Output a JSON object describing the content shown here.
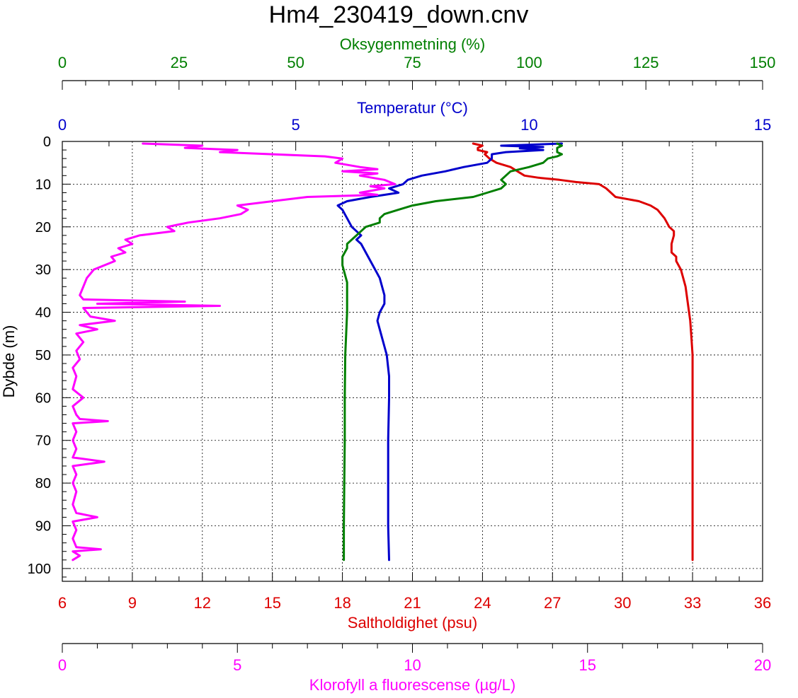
{
  "title": "Hm4_230419_down.cnv",
  "colors": {
    "oxygen": "#007f00",
    "temperature": "#0000cc",
    "salinity": "#dd0000",
    "chlorophyll": "#ff00ff",
    "axis": "#000000",
    "grid": "#000000"
  },
  "chart_data": {
    "type": "line",
    "title": "Hm4_230419_down.cnv",
    "grid": true,
    "depth_axis": {
      "label": "Dybde (m)",
      "ticks": [
        "0",
        "10",
        "20",
        "30",
        "40",
        "50",
        "60",
        "70",
        "80",
        "90",
        "100"
      ],
      "range": [
        0,
        103
      ],
      "inverted": true
    },
    "axes": [
      {
        "key": "oxygen",
        "label": "Oksygenmetning (%)",
        "range": [
          0,
          150
        ],
        "ticks": [
          "0",
          "25",
          "50",
          "75",
          "100",
          "125",
          "150"
        ]
      },
      {
        "key": "temperature",
        "label": "Temperatur (°C)",
        "range": [
          0,
          15
        ],
        "ticks": [
          "0",
          "5",
          "10",
          "15"
        ]
      },
      {
        "key": "salinity",
        "label": "Saltholdighet (psu)",
        "range": [
          6,
          36
        ],
        "ticks": [
          "6",
          "9",
          "12",
          "15",
          "18",
          "21",
          "24",
          "27",
          "30",
          "33",
          "36"
        ]
      },
      {
        "key": "chlorophyll",
        "label": "Klorofyll a fluorescense (µg/L)",
        "range": [
          0,
          20
        ],
        "ticks": [
          "0",
          "5",
          "10",
          "15",
          "20"
        ]
      }
    ],
    "series": [
      {
        "key": "salinity",
        "axis": "salinity",
        "points": [
          [
            23.6,
            0.5
          ],
          [
            24.0,
            1
          ],
          [
            23.8,
            1.5
          ],
          [
            23.8,
            2
          ],
          [
            24.2,
            2.5
          ],
          [
            24.1,
            3
          ],
          [
            24.3,
            4
          ],
          [
            24.6,
            5
          ],
          [
            25.2,
            6
          ],
          [
            25.5,
            7
          ],
          [
            25.8,
            8
          ],
          [
            26.4,
            8.5
          ],
          [
            27.3,
            9
          ],
          [
            28.0,
            9.5
          ],
          [
            29.0,
            10
          ],
          [
            29.3,
            11
          ],
          [
            29.7,
            13
          ],
          [
            30.7,
            14
          ],
          [
            31.2,
            15
          ],
          [
            31.5,
            16
          ],
          [
            31.8,
            18
          ],
          [
            31.9,
            19
          ],
          [
            32.0,
            20
          ],
          [
            32.2,
            21
          ],
          [
            32.2,
            22
          ],
          [
            32.1,
            24
          ],
          [
            32.1,
            26
          ],
          [
            32.3,
            27
          ],
          [
            32.3,
            28
          ],
          [
            32.5,
            30
          ],
          [
            32.6,
            32
          ],
          [
            32.7,
            34
          ],
          [
            32.8,
            38
          ],
          [
            32.9,
            42
          ],
          [
            32.95,
            46
          ],
          [
            33.0,
            50
          ],
          [
            33.0,
            58
          ],
          [
            33.0,
            70
          ],
          [
            33.0,
            80
          ],
          [
            33.0,
            90
          ],
          [
            33.0,
            98
          ]
        ]
      },
      {
        "key": "temperature",
        "axis": "temperature",
        "points": [
          [
            10.7,
            0.5
          ],
          [
            9.4,
            1
          ],
          [
            10.3,
            1.3
          ],
          [
            9.8,
            1.6
          ],
          [
            10.3,
            2
          ],
          [
            9.5,
            2.5
          ],
          [
            9.2,
            3
          ],
          [
            9.2,
            4
          ],
          [
            9.1,
            5
          ],
          [
            8.6,
            6
          ],
          [
            8.2,
            7
          ],
          [
            7.7,
            8
          ],
          [
            7.4,
            9
          ],
          [
            7.3,
            10
          ],
          [
            7.0,
            11
          ],
          [
            7.2,
            12
          ],
          [
            6.6,
            13
          ],
          [
            6.1,
            14
          ],
          [
            5.9,
            15
          ],
          [
            6.0,
            16
          ],
          [
            6.1,
            18
          ],
          [
            6.2,
            20
          ],
          [
            6.4,
            22
          ],
          [
            6.3,
            23
          ],
          [
            6.4,
            24
          ],
          [
            6.5,
            26
          ],
          [
            6.6,
            28
          ],
          [
            6.7,
            30
          ],
          [
            6.8,
            32
          ],
          [
            6.85,
            34
          ],
          [
            6.9,
            36
          ],
          [
            6.9,
            38
          ],
          [
            6.8,
            40
          ],
          [
            6.75,
            42
          ],
          [
            6.8,
            44
          ],
          [
            6.85,
            46
          ],
          [
            6.9,
            48
          ],
          [
            6.95,
            50
          ],
          [
            7.0,
            55
          ],
          [
            7.0,
            60
          ],
          [
            6.98,
            70
          ],
          [
            6.98,
            80
          ],
          [
            6.98,
            90
          ],
          [
            7.0,
            98
          ]
        ]
      },
      {
        "key": "oxygen",
        "axis": "oxygen",
        "points": [
          [
            106,
            0.5
          ],
          [
            107,
            1
          ],
          [
            106,
            1.5
          ],
          [
            106,
            2.5
          ],
          [
            107,
            3
          ],
          [
            106,
            3.5
          ],
          [
            104,
            4
          ],
          [
            103,
            5
          ],
          [
            100,
            6
          ],
          [
            98,
            6.5
          ],
          [
            96,
            7
          ],
          [
            95,
            8
          ],
          [
            94,
            9
          ],
          [
            95,
            10
          ],
          [
            94,
            11
          ],
          [
            91,
            12
          ],
          [
            88,
            13
          ],
          [
            80,
            14
          ],
          [
            75,
            15
          ],
          [
            72,
            16
          ],
          [
            69,
            17
          ],
          [
            68,
            18
          ],
          [
            68,
            19
          ],
          [
            65,
            20
          ],
          [
            64,
            21
          ],
          [
            63,
            22
          ],
          [
            62,
            23
          ],
          [
            61,
            24
          ],
          [
            61,
            25
          ],
          [
            60,
            27
          ],
          [
            60,
            29
          ],
          [
            60.5,
            31
          ],
          [
            61,
            33
          ],
          [
            61,
            40
          ],
          [
            60.8,
            45
          ],
          [
            60.6,
            50
          ],
          [
            60.5,
            60
          ],
          [
            60.5,
            70
          ],
          [
            60.4,
            80
          ],
          [
            60.3,
            90
          ],
          [
            60.3,
            98
          ]
        ]
      },
      {
        "key": "chlorophyll",
        "axis": "chlorophyll",
        "points": [
          [
            2.3,
            0.5
          ],
          [
            4.0,
            1
          ],
          [
            3.5,
            1.5
          ],
          [
            5.0,
            2
          ],
          [
            4.5,
            2.5
          ],
          [
            6.0,
            3
          ],
          [
            7.5,
            3.5
          ],
          [
            8.0,
            4
          ],
          [
            7.8,
            5
          ],
          [
            8.5,
            6
          ],
          [
            9.0,
            6.5
          ],
          [
            8.0,
            7
          ],
          [
            9.0,
            7.5
          ],
          [
            8.5,
            8
          ],
          [
            9.2,
            9
          ],
          [
            9.5,
            10
          ],
          [
            8.8,
            10.5
          ],
          [
            9.2,
            11
          ],
          [
            8.5,
            12
          ],
          [
            9.0,
            12.5
          ],
          [
            7.0,
            13
          ],
          [
            6.0,
            14
          ],
          [
            5.0,
            15
          ],
          [
            5.3,
            16
          ],
          [
            5.1,
            17
          ],
          [
            4.5,
            18
          ],
          [
            3.6,
            19
          ],
          [
            3.0,
            20
          ],
          [
            3.2,
            21
          ],
          [
            2.2,
            22
          ],
          [
            1.8,
            23
          ],
          [
            2.0,
            24
          ],
          [
            1.6,
            25
          ],
          [
            1.8,
            26
          ],
          [
            1.4,
            27
          ],
          [
            1.5,
            28
          ],
          [
            0.9,
            30
          ],
          [
            0.7,
            32
          ],
          [
            0.6,
            34
          ],
          [
            0.5,
            36
          ],
          [
            0.6,
            37
          ],
          [
            3.5,
            37.5
          ],
          [
            1.0,
            38
          ],
          [
            4.5,
            38.5
          ],
          [
            0.6,
            39
          ],
          [
            0.8,
            41
          ],
          [
            1.5,
            42
          ],
          [
            0.5,
            43
          ],
          [
            1.0,
            44
          ],
          [
            0.4,
            45
          ],
          [
            0.6,
            47
          ],
          [
            0.4,
            49
          ],
          [
            0.5,
            51
          ],
          [
            0.3,
            53
          ],
          [
            0.4,
            55
          ],
          [
            0.3,
            58
          ],
          [
            0.6,
            60
          ],
          [
            0.3,
            62
          ],
          [
            0.4,
            64
          ],
          [
            0.5,
            65
          ],
          [
            1.3,
            65.5
          ],
          [
            0.3,
            66
          ],
          [
            0.4,
            68
          ],
          [
            0.3,
            70
          ],
          [
            0.4,
            72
          ],
          [
            0.3,
            74
          ],
          [
            1.2,
            75
          ],
          [
            0.3,
            76
          ],
          [
            0.4,
            78
          ],
          [
            0.3,
            80
          ],
          [
            0.4,
            82
          ],
          [
            0.3,
            85
          ],
          [
            0.4,
            87
          ],
          [
            1.0,
            88
          ],
          [
            0.3,
            89
          ],
          [
            0.4,
            91
          ],
          [
            0.3,
            93
          ],
          [
            0.4,
            95
          ],
          [
            1.1,
            95.5
          ],
          [
            0.3,
            96
          ],
          [
            0.5,
            97
          ],
          [
            0.3,
            98
          ]
        ]
      }
    ]
  }
}
